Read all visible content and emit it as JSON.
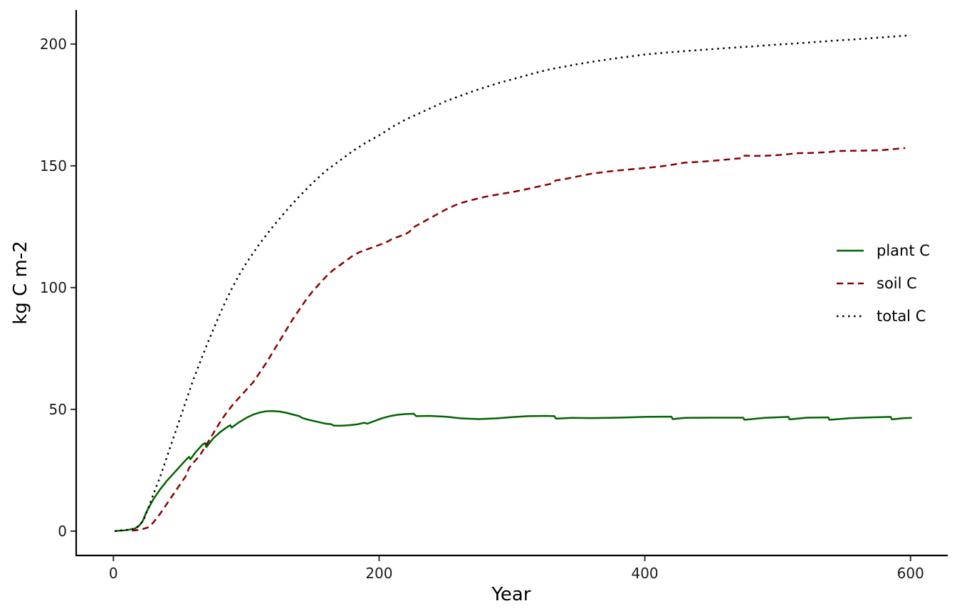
{
  "chart_data": {
    "type": "line",
    "title": "",
    "xlabel": "Year",
    "ylabel": "kg C m-2",
    "xlim": [
      -28,
      628
    ],
    "ylim": [
      -10,
      214
    ],
    "x_ticks": [
      0,
      200,
      400,
      600
    ],
    "y_ticks": [
      0,
      50,
      100,
      150,
      200
    ],
    "grid": false,
    "legend_position": "right",
    "series": [
      {
        "name": "plant C",
        "color": "#006400",
        "dash": "solid",
        "points": [
          [
            1,
            0
          ],
          [
            10,
            0.4
          ],
          [
            16,
            1
          ],
          [
            19,
            2
          ],
          [
            22,
            4
          ],
          [
            25,
            8
          ],
          [
            30,
            13
          ],
          [
            35,
            17
          ],
          [
            40,
            20.5
          ],
          [
            45,
            23.5
          ],
          [
            50,
            26.5
          ],
          [
            55,
            29.5
          ],
          [
            57,
            30.5
          ],
          [
            58,
            29.5
          ],
          [
            62,
            32.5
          ],
          [
            67,
            35.5
          ],
          [
            69,
            36.2
          ],
          [
            70,
            34.5
          ],
          [
            75,
            38
          ],
          [
            80,
            40.5
          ],
          [
            85,
            42.5
          ],
          [
            88,
            43.5
          ],
          [
            89,
            42.5
          ],
          [
            94,
            44.5
          ],
          [
            100,
            46.5
          ],
          [
            105,
            47.8
          ],
          [
            110,
            48.7
          ],
          [
            115,
            49.2
          ],
          [
            120,
            49.3
          ],
          [
            125,
            49.1
          ],
          [
            130,
            48.6
          ],
          [
            135,
            47.9
          ],
          [
            140,
            47.2
          ],
          [
            142,
            46.5
          ],
          [
            147,
            45.7
          ],
          [
            155,
            44.7
          ],
          [
            160,
            44.1
          ],
          [
            164,
            43.9
          ],
          [
            166,
            43.3
          ],
          [
            172,
            43.3
          ],
          [
            178,
            43.5
          ],
          [
            184,
            43.9
          ],
          [
            189,
            44.5
          ],
          [
            191,
            44.1
          ],
          [
            196,
            45.1
          ],
          [
            202,
            46.3
          ],
          [
            208,
            47.2
          ],
          [
            214,
            47.8
          ],
          [
            220,
            48.1
          ],
          [
            226,
            48.2
          ],
          [
            228,
            47.2
          ],
          [
            238,
            47.3
          ],
          [
            250,
            47.0
          ],
          [
            262,
            46.3
          ],
          [
            275,
            46.0
          ],
          [
            288,
            46.3
          ],
          [
            300,
            46.8
          ],
          [
            312,
            47.2
          ],
          [
            325,
            47.3
          ],
          [
            332,
            47.2
          ],
          [
            333,
            46.2
          ],
          [
            345,
            46.5
          ],
          [
            360,
            46.4
          ],
          [
            380,
            46.6
          ],
          [
            400,
            46.9
          ],
          [
            415,
            47.0
          ],
          [
            420,
            47.0
          ],
          [
            421,
            46.0
          ],
          [
            430,
            46.5
          ],
          [
            450,
            46.6
          ],
          [
            474,
            46.6
          ],
          [
            475,
            45.7
          ],
          [
            490,
            46.5
          ],
          [
            508,
            46.9
          ],
          [
            509,
            45.9
          ],
          [
            522,
            46.6
          ],
          [
            538,
            46.7
          ],
          [
            539,
            45.7
          ],
          [
            555,
            46.4
          ],
          [
            570,
            46.7
          ],
          [
            585,
            46.9
          ],
          [
            586,
            45.9
          ],
          [
            595,
            46.4
          ],
          [
            601,
            46.5
          ]
        ]
      },
      {
        "name": "soil C",
        "color": "#8b0000",
        "dash": "dashed",
        "points": [
          [
            14,
            0.2
          ],
          [
            20,
            0.5
          ],
          [
            26,
            1.5
          ],
          [
            30,
            3.5
          ],
          [
            35,
            7
          ],
          [
            40,
            11
          ],
          [
            45,
            15
          ],
          [
            50,
            19
          ],
          [
            55,
            23
          ],
          [
            57,
            26
          ],
          [
            60,
            28
          ],
          [
            65,
            31
          ],
          [
            70,
            35.5
          ],
          [
            75,
            40
          ],
          [
            80,
            44.5
          ],
          [
            85,
            48.5
          ],
          [
            90,
            52
          ],
          [
            95,
            55
          ],
          [
            100,
            58
          ],
          [
            105,
            61
          ],
          [
            110,
            65
          ],
          [
            115,
            69
          ],
          [
            120,
            73.5
          ],
          [
            125,
            78
          ],
          [
            130,
            82.5
          ],
          [
            135,
            87
          ],
          [
            140,
            91
          ],
          [
            145,
            95
          ],
          [
            150,
            98.5
          ],
          [
            155,
            101.5
          ],
          [
            160,
            104.5
          ],
          [
            165,
            107
          ],
          [
            170,
            109
          ],
          [
            175,
            111
          ],
          [
            180,
            113
          ],
          [
            185,
            114.5
          ],
          [
            190,
            115.5
          ],
          [
            195,
            116.5
          ],
          [
            200,
            117.5
          ],
          [
            205,
            118.5
          ],
          [
            210,
            120
          ],
          [
            215,
            121
          ],
          [
            220,
            122
          ],
          [
            223,
            123
          ],
          [
            225,
            124.5
          ],
          [
            230,
            126
          ],
          [
            240,
            129
          ],
          [
            250,
            132
          ],
          [
            260,
            134.5
          ],
          [
            270,
            136
          ],
          [
            280,
            137.3
          ],
          [
            290,
            138.3
          ],
          [
            300,
            139.2
          ],
          [
            310,
            140.3
          ],
          [
            320,
            141.5
          ],
          [
            330,
            142.7
          ],
          [
            333,
            144
          ],
          [
            340,
            144.6
          ],
          [
            350,
            145.7
          ],
          [
            360,
            146.8
          ],
          [
            370,
            147.5
          ],
          [
            380,
            148.1
          ],
          [
            390,
            148.6
          ],
          [
            400,
            149.1
          ],
          [
            410,
            149.6
          ],
          [
            420,
            150.4
          ],
          [
            430,
            151.3
          ],
          [
            440,
            151.6
          ],
          [
            450,
            152.0
          ],
          [
            460,
            152.5
          ],
          [
            470,
            153.0
          ],
          [
            474,
            153.2
          ],
          [
            475,
            154.2
          ],
          [
            480,
            154.1
          ],
          [
            490,
            154.1
          ],
          [
            500,
            154.4
          ],
          [
            508,
            154.8
          ],
          [
            515,
            155.2
          ],
          [
            525,
            155.3
          ],
          [
            538,
            155.6
          ],
          [
            545,
            156.1
          ],
          [
            560,
            156.2
          ],
          [
            570,
            156.3
          ],
          [
            580,
            156.5
          ],
          [
            590,
            157.0
          ],
          [
            596,
            157.3
          ]
        ]
      },
      {
        "name": "total C",
        "color": "#000000",
        "dash": "dotted",
        "points": [
          [
            1,
            0
          ],
          [
            10,
            0.5
          ],
          [
            16,
            1
          ],
          [
            20,
            2.5
          ],
          [
            23,
            5
          ],
          [
            26,
            9
          ],
          [
            30,
            15
          ],
          [
            35,
            22
          ],
          [
            40,
            30
          ],
          [
            45,
            38
          ],
          [
            50,
            46
          ],
          [
            55,
            54
          ],
          [
            60,
            62
          ],
          [
            65,
            69
          ],
          [
            70,
            76
          ],
          [
            75,
            82.5
          ],
          [
            80,
            89
          ],
          [
            85,
            95
          ],
          [
            90,
            100.5
          ],
          [
            95,
            105.5
          ],
          [
            100,
            110
          ],
          [
            110,
            118
          ],
          [
            120,
            125
          ],
          [
            130,
            131.5
          ],
          [
            140,
            137.5
          ],
          [
            150,
            143
          ],
          [
            160,
            148
          ],
          [
            170,
            152
          ],
          [
            180,
            156
          ],
          [
            190,
            159.5
          ],
          [
            200,
            162.5
          ],
          [
            210,
            166
          ],
          [
            220,
            169
          ],
          [
            230,
            171.5
          ],
          [
            240,
            174
          ],
          [
            250,
            176.5
          ],
          [
            260,
            178.5
          ],
          [
            270,
            180.5
          ],
          [
            280,
            182.3
          ],
          [
            290,
            184
          ],
          [
            300,
            185.5
          ],
          [
            310,
            187
          ],
          [
            320,
            188.5
          ],
          [
            330,
            189.8
          ],
          [
            340,
            190.8
          ],
          [
            350,
            191.8
          ],
          [
            360,
            192.7
          ],
          [
            370,
            193.5
          ],
          [
            380,
            194.3
          ],
          [
            390,
            195
          ],
          [
            400,
            195.7
          ],
          [
            420,
            196.7
          ],
          [
            440,
            197.5
          ],
          [
            460,
            198.3
          ],
          [
            480,
            199
          ],
          [
            500,
            199.8
          ],
          [
            520,
            200.5
          ],
          [
            540,
            201.3
          ],
          [
            560,
            202
          ],
          [
            580,
            202.8
          ],
          [
            600,
            203.6
          ]
        ]
      }
    ]
  }
}
